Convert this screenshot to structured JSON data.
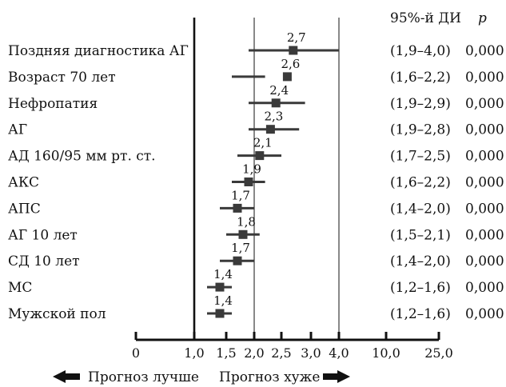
{
  "header": {
    "ci_label": "95%-й ДИ",
    "p_label": "p"
  },
  "footer": {
    "better_label": "Прогноз лучше",
    "worse_label": "Прогноз хуже"
  },
  "colors": {
    "ink": "#111111",
    "marker": "#3a3a3a"
  },
  "chart_data": {
    "type": "forest",
    "x_scale": "nonlinear (0–1.0 compressed, 1.0–4.0 expanded, 4.0–25.0 compressed)",
    "x_ticks": [
      "0",
      "1,0",
      "1,5",
      "2,0",
      "2,5",
      "3,0",
      "4,0",
      "10,0",
      "25,0"
    ],
    "x_tick_values": [
      0,
      1.0,
      1.5,
      2.0,
      2.5,
      3.0,
      4.0,
      10.0,
      25.0
    ],
    "reference_lines": [
      1.0,
      2.0,
      4.0
    ],
    "rows": [
      {
        "label": "Поздняя диагностика АГ",
        "value": 2.7,
        "value_label": "2,7",
        "lo": 1.9,
        "hi": 4.0,
        "ci": "(1,9–4,0)",
        "p": "0,000"
      },
      {
        "label": "Возраст 70 лет",
        "value": 2.6,
        "value_label": "2,6",
        "lo": 1.6,
        "hi": 2.2,
        "ci": "(1,6–2,2)",
        "p": "0,000"
      },
      {
        "label": "Нефропатия",
        "value": 2.4,
        "value_label": "2,4",
        "lo": 1.9,
        "hi": 2.9,
        "ci": "(1,9–2,9)",
        "p": "0,000"
      },
      {
        "label": "АГ",
        "value": 2.3,
        "value_label": "2,3",
        "lo": 1.9,
        "hi": 2.8,
        "ci": "(1,9–2,8)",
        "p": "0,000"
      },
      {
        "label": "АД 160/95 мм рт. ст.",
        "value": 2.1,
        "value_label": "2,1",
        "lo": 1.7,
        "hi": 2.5,
        "ci": "(1,7–2,5)",
        "p": "0,000"
      },
      {
        "label": "АКС",
        "value": 1.9,
        "value_label": "1,9",
        "lo": 1.6,
        "hi": 2.2,
        "ci": "(1,6–2,2)",
        "p": "0,000"
      },
      {
        "label": "АПС",
        "value": 1.7,
        "value_label": "1,7",
        "lo": 1.4,
        "hi": 2.0,
        "ci": "(1,4–2,0)",
        "p": "0,000"
      },
      {
        "label": "АГ 10 лет",
        "value": 1.8,
        "value_label": "1,8",
        "lo": 1.5,
        "hi": 2.1,
        "ci": "(1,5–2,1)",
        "p": "0,000"
      },
      {
        "label": "СД 10 лет",
        "value": 1.7,
        "value_label": "1,7",
        "lo": 1.4,
        "hi": 2.0,
        "ci": "(1,4–2,0)",
        "p": "0,000"
      },
      {
        "label": "МС",
        "value": 1.4,
        "value_label": "1,4",
        "lo": 1.2,
        "hi": 1.6,
        "ci": "(1,2–1,6)",
        "p": "0,000"
      },
      {
        "label": "Мужской пол",
        "value": 1.4,
        "value_label": "1,4",
        "lo": 1.2,
        "hi": 1.6,
        "ci": "(1,2–1,6)",
        "p": "0,000"
      }
    ]
  }
}
